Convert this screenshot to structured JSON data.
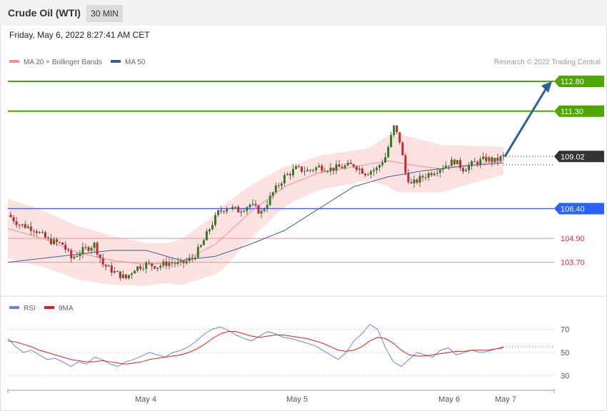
{
  "header": {
    "title": "Crude Oil (WTI)",
    "timeframe": "30 MIN",
    "date": "Friday, May 6, 2022 8:27:41 AM CET"
  },
  "legend": {
    "ma20": "MA 20 + Bollinger Bands",
    "ma50": "MA 50",
    "copyright": "Research © 2022 Trading Central",
    "rsi": "RSI",
    "rsi_ma": "9MA"
  },
  "colors": {
    "green_level": "#4ea600",
    "blue_level": "#2962ff",
    "red_level": "#f08a8a",
    "ma20": "#f48d8d",
    "ma50": "#3e5f94",
    "bands_fill": "#fde2e2",
    "up_candle": "#2e7d1e",
    "down_candle": "#c62828",
    "arrow": "#2c5f9e",
    "rsi": "#6688dd",
    "rsi_ma": "#dd2222"
  },
  "chart_data": [
    {
      "type": "candlestick",
      "title": "Crude Oil (WTI)",
      "timeframe": "30 MIN",
      "y_range": [
        102.0,
        113.3
      ],
      "x_ticks": [
        "May 4",
        "May 5",
        "May 6",
        "May 7"
      ],
      "last_price": 109.02,
      "levels": [
        {
          "label": "112.80",
          "value": 112.8,
          "kind": "resistance",
          "color": "#4ea600"
        },
        {
          "label": "111.30",
          "value": 111.3,
          "kind": "resistance",
          "color": "#4ea600"
        },
        {
          "label": "109.02",
          "value": 109.02,
          "kind": "last",
          "color": "#333333"
        },
        {
          "label": "106.40",
          "value": 106.4,
          "kind": "support",
          "color": "#2962ff"
        },
        {
          "label": "104.90",
          "value": 104.9,
          "kind": "support",
          "color": "#e53935"
        },
        {
          "label": "103.70",
          "value": 103.7,
          "kind": "support",
          "color": "#e53935"
        }
      ],
      "arrow": {
        "from": 109.02,
        "to": 112.8
      },
      "price_path": [
        [
          0,
          106.1
        ],
        [
          4,
          105.6
        ],
        [
          9,
          105.4
        ],
        [
          14,
          104.8
        ],
        [
          19,
          104.6
        ],
        [
          22,
          103.9
        ],
        [
          26,
          104.3
        ],
        [
          30,
          104.6
        ],
        [
          33,
          103.6
        ],
        [
          37,
          103.2
        ],
        [
          41,
          102.9
        ],
        [
          44,
          103.4
        ],
        [
          48,
          103.6
        ],
        [
          52,
          103.5
        ],
        [
          56,
          103.7
        ],
        [
          60,
          103.6
        ],
        [
          64,
          103.9
        ],
        [
          67,
          104.5
        ],
        [
          70,
          105.4
        ],
        [
          73,
          106.2
        ],
        [
          76,
          106.5
        ],
        [
          80,
          106.3
        ],
        [
          84,
          106.6
        ],
        [
          88,
          106.2
        ],
        [
          92,
          107.2
        ],
        [
          96,
          108.0
        ],
        [
          100,
          108.4
        ],
        [
          104,
          108.3
        ],
        [
          108,
          108.5
        ],
        [
          112,
          108.4
        ],
        [
          116,
          108.5
        ],
        [
          120,
          108.6
        ],
        [
          124,
          108.2
        ],
        [
          128,
          108.4
        ],
        [
          131,
          109.0
        ],
        [
          134,
          110.5
        ],
        [
          136,
          109.8
        ],
        [
          138,
          108.2
        ],
        [
          140,
          107.6
        ],
        [
          144,
          108.0
        ],
        [
          148,
          108.3
        ],
        [
          152,
          108.6
        ],
        [
          155,
          108.8
        ],
        [
          158,
          108.4
        ],
        [
          162,
          108.7
        ],
        [
          166,
          108.9
        ],
        [
          169,
          108.8
        ],
        [
          172,
          109.02
        ]
      ],
      "ma20": [
        [
          0,
          105.4
        ],
        [
          12,
          104.9
        ],
        [
          24,
          104.2
        ],
        [
          36,
          103.8
        ],
        [
          48,
          103.6
        ],
        [
          60,
          103.7
        ],
        [
          72,
          104.6
        ],
        [
          84,
          106.2
        ],
        [
          96,
          107.5
        ],
        [
          108,
          108.2
        ],
        [
          120,
          108.5
        ],
        [
          132,
          108.8
        ],
        [
          140,
          108.6
        ],
        [
          150,
          108.4
        ],
        [
          160,
          108.6
        ],
        [
          172,
          108.8
        ]
      ],
      "ma50": [
        [
          0,
          103.7
        ],
        [
          12,
          103.9
        ],
        [
          24,
          104.1
        ],
        [
          36,
          104.3
        ],
        [
          48,
          104.3
        ],
        [
          60,
          103.8
        ],
        [
          72,
          104.0
        ],
        [
          84,
          104.6
        ],
        [
          96,
          105.3
        ],
        [
          108,
          106.4
        ],
        [
          120,
          107.5
        ],
        [
          132,
          108.0
        ],
        [
          144,
          108.3
        ],
        [
          156,
          108.5
        ],
        [
          172,
          108.7
        ]
      ]
    },
    {
      "type": "line",
      "title": "RSI",
      "y_range": [
        20,
        80
      ],
      "y_ticks": [
        70,
        50,
        30
      ],
      "series": [
        {
          "name": "RSI",
          "values": [
            62,
            55,
            50,
            52,
            48,
            44,
            45,
            42,
            38,
            42,
            40,
            46,
            44,
            40,
            38,
            42,
            44,
            47,
            50,
            48,
            46,
            50,
            52,
            55,
            60,
            66,
            70,
            72,
            69,
            65,
            62,
            60,
            64,
            68,
            66,
            63,
            62,
            60,
            58,
            56,
            52,
            48,
            44,
            50,
            60,
            66,
            74,
            70,
            54,
            42,
            38,
            44,
            50,
            48,
            46,
            52,
            54,
            48,
            50,
            52,
            50,
            51,
            53,
            55
          ]
        },
        {
          "name": "9MA",
          "values": [
            60,
            59,
            57,
            55,
            52,
            50,
            48,
            46,
            44,
            43,
            42,
            42,
            43,
            42,
            41,
            40,
            41,
            42,
            44,
            45,
            46,
            47,
            48,
            50,
            53,
            57,
            62,
            66,
            68,
            68,
            66,
            64,
            63,
            64,
            65,
            65,
            64,
            63,
            62,
            60,
            58,
            55,
            52,
            51,
            52,
            55,
            60,
            63,
            62,
            58,
            52,
            48,
            47,
            47,
            48,
            49,
            50,
            51,
            51,
            52,
            52,
            52,
            53,
            54
          ]
        }
      ]
    }
  ]
}
